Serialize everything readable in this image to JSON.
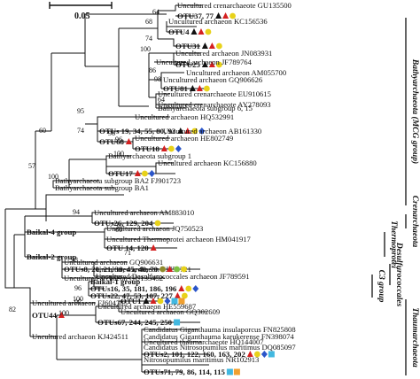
{
  "scale_label": "0.05",
  "colors": {
    "triangle_black": "#111111",
    "triangle_red": "#d42020",
    "circle_yellow": "#e8d21a",
    "circle_olive": "#8f8a2a",
    "circle_green": "#7dc142",
    "diamond_blue": "#2a55c9",
    "square_cyan": "#42b8e0",
    "square_orange": "#f0a030"
  },
  "leaves": [
    {
      "text": "Uncultured crenarchaeote GU135500",
      "type": "leaf"
    },
    {
      "text": "OTU37, 77",
      "type": "otu",
      "marks": [
        "triangle_black",
        "triangle_red",
        "circle_yellow"
      ]
    },
    {
      "text": "Uncultured archaeon KC156536",
      "type": "leaf"
    },
    {
      "text": "OTU4",
      "type": "otu",
      "marks": [
        "triangle_black",
        "triangle_red",
        "circle_yellow"
      ]
    },
    {
      "text": "OTU31",
      "type": "otu",
      "marks": [
        "triangle_black",
        "triangle_red",
        "circle_yellow"
      ]
    },
    {
      "text": "Uncultured archaeon JN083931",
      "type": "leaf"
    },
    {
      "text": "OTU25",
      "type": "otu",
      "marks": [
        "triangle_black",
        "triangle_red",
        "circle_yellow"
      ]
    },
    {
      "text": "Uncultured archaeon JF789764",
      "type": "leaf"
    },
    {
      "text": "Uncultured archaeon AM055700",
      "type": "leaf"
    },
    {
      "text": "OTU81",
      "type": "otu",
      "marks": [
        "triangle_black",
        "triangle_red",
        "circle_yellow"
      ]
    },
    {
      "text": "Uncultured archaeon GQ906626",
      "type": "leaf"
    },
    {
      "text": "Uncultured crenarchaeote EU910615",
      "type": "leaf"
    },
    {
      "text": "Uncultured crenarchaeote AY278093",
      "type": "leaf"
    },
    {
      "text": "Bathyarchaeota subgroup 6, 15",
      "type": "leaf"
    },
    {
      "text": "Uncultured archaeon HQ532991",
      "type": "leaf"
    },
    {
      "text": "OTUs 19, 34, 55, 80, 93",
      "type": "otu",
      "marks": [
        "triangle_black",
        "triangle_red",
        "circle_yellow",
        "diamond_blue"
      ]
    },
    {
      "text": "OTU68",
      "type": "otu",
      "marks": [
        "triangle_red"
      ]
    },
    {
      "text": "Uncultured archaeon HE802749",
      "type": "leaf"
    },
    {
      "text": "OTU18",
      "type": "otu",
      "marks": [
        "triangle_red",
        "circle_yellow",
        "diamond_blue"
      ]
    },
    {
      "text": "Uncultured archaeon AB161330",
      "type": "leaf"
    },
    {
      "text": "Bathyarchaeota subgroup 1",
      "type": "leaf"
    },
    {
      "text": "OTU17",
      "type": "otu",
      "marks": [
        "triangle_red",
        "circle_yellow",
        "diamond_blue"
      ]
    },
    {
      "text": "Uncultured archaeon KC156880",
      "type": "leaf"
    },
    {
      "text": "Bathyarchaeota subgroup BA2 FJ901723",
      "type": "leaf"
    },
    {
      "text": "Bathyarchaeota subgroup BA1",
      "type": "leaf"
    },
    {
      "text": "Uncultured archaeon AM883010",
      "type": "leaf"
    },
    {
      "text": "OTUs26, 129, 204",
      "type": "otu",
      "marks": [
        "circle_yellow"
      ]
    },
    {
      "text": "Uncultured archaeon JQ750523",
      "type": "leaf"
    },
    {
      "text": "Uncultured Thermoprotei archaeon HM041917",
      "type": "leaf"
    },
    {
      "text": "OTU 14, 120",
      "type": "otu",
      "marks": [
        "triangle_red"
      ]
    },
    {
      "text": "Baikal-4 group",
      "type": "otu"
    },
    {
      "text": "Uncultured archaeon GQ906631",
      "type": "leaf"
    },
    {
      "text": "Baikal-2 group",
      "type": "otu"
    },
    {
      "text": "Uncultured archaeon FJ755721",
      "type": "leaf"
    },
    {
      "text": "OTUs8, 20, 21, 38, 45, 48, 70",
      "type": "otu",
      "marks": [
        "circle_olive",
        "triangle_red",
        "circle_green",
        "circle_yellow"
      ]
    },
    {
      "text": "Uncultured Desulfurococcales archaeon JF789591",
      "type": "leaf"
    },
    {
      "text": "Uncultured archaeon GU135452",
      "type": "leaf"
    },
    {
      "text": "Baikal-1 group",
      "type": "otu"
    },
    {
      "text": "OTUs16, 35, 181, 186, 196",
      "type": "otu",
      "marks": [
        "triangle_red",
        "circle_yellow",
        "diamond_blue"
      ]
    },
    {
      "text": "Uncultured archaeon FJ604785",
      "type": "leaf"
    },
    {
      "text": "OTUs22, 47, 53, 107, 227",
      "type": "otu",
      "marks": [
        "triangle_red",
        "circle_yellow"
      ]
    },
    {
      "text": "OTU44",
      "type": "otu",
      "marks": [
        "triangle_red"
      ]
    },
    {
      "text": "Uncultured archaeon KJ424511",
      "type": "leaf"
    },
    {
      "text": "OTU1",
      "type": "otu",
      "marks": [
        "triangle_black",
        "triangle_red",
        "circle_yellow",
        "diamond_blue",
        "square_cyan",
        "square_orange"
      ]
    },
    {
      "text": "Uncultured archaeon GQ302609",
      "type": "leaf"
    },
    {
      "text": "OTUs67, 244, 245, 250",
      "type": "otu",
      "marks": [
        "square_cyan"
      ]
    },
    {
      "text": "Uncultured archaeon HE559687",
      "type": "leaf"
    },
    {
      "text": "Candidatus Giganthauma insulaporcus FN825808",
      "type": "leaf"
    },
    {
      "text": "Candidatus Giganthauma karukerense FN398074",
      "type": "leaf"
    },
    {
      "text": "Uncultured thaumarchaeote HQ144007",
      "type": "leaf"
    },
    {
      "text": "Candidatus Nitrosopumilus maritimus DQ085097",
      "type": "leaf"
    },
    {
      "text": "OTUs2, 101, 122, 160, 163, 202",
      "type": "otu",
      "marks": [
        "triangle_red",
        "circle_yellow",
        "diamond_blue",
        "square_cyan"
      ]
    },
    {
      "text": "Nitrosopumilus maritimus NR102913",
      "type": "leaf"
    },
    {
      "text": "OTUs71, 79, 86, 114, 115",
      "type": "otu",
      "marks": [
        "square_cyan",
        "square_orange"
      ]
    }
  ],
  "bootstrap": [
    "64",
    "68",
    "74",
    "100",
    "86",
    "98",
    "64",
    "95",
    "74",
    "60",
    "57",
    "98",
    "96",
    "100",
    "100",
    "94",
    "67",
    "60",
    "71",
    "98",
    "96",
    "97",
    "100",
    "100",
    "82"
  ],
  "groups": [
    {
      "label": "Bathyarchaeota (MCG group)"
    },
    {
      "label": "Crenarchaeota"
    },
    {
      "label": "Thermoprotei"
    },
    {
      "label": "Desulfurococcales"
    },
    {
      "label": "C3 group"
    },
    {
      "label": "Thaumarchaeota"
    }
  ]
}
